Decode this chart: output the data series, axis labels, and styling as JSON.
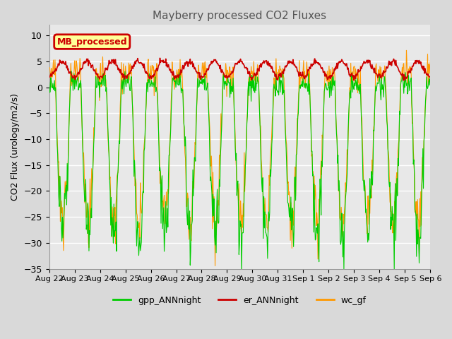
{
  "title": "Mayberry processed CO2 Fluxes",
  "ylabel": "CO2 Flux (urology/m2/s)",
  "ylim": [
    -35,
    12
  ],
  "yticks": [
    10,
    5,
    0,
    -5,
    -10,
    -15,
    -20,
    -25,
    -30,
    -35
  ],
  "legend_box_label": "MB_processed",
  "legend_box_color": "#cc0000",
  "legend_box_bg": "#ffff99",
  "colors": {
    "gpp_ANNnight": "#00cc00",
    "er_ANNnight": "#cc0000",
    "wc_gf": "#ff9900"
  },
  "n_days": 15,
  "x_labels": [
    "Aug 22",
    "Aug 23",
    "Aug 24",
    "Aug 25",
    "Aug 26",
    "Aug 27",
    "Aug 28",
    "Aug 29",
    "Aug 30",
    "Aug 31",
    "Sep 1",
    "Sep 2",
    "Sep 3",
    "Sep 4",
    "Sep 5",
    "Sep 6"
  ],
  "bg_color": "#d9d9d9",
  "plot_bg": "#e8e8e8",
  "grid_color": "#ffffff"
}
